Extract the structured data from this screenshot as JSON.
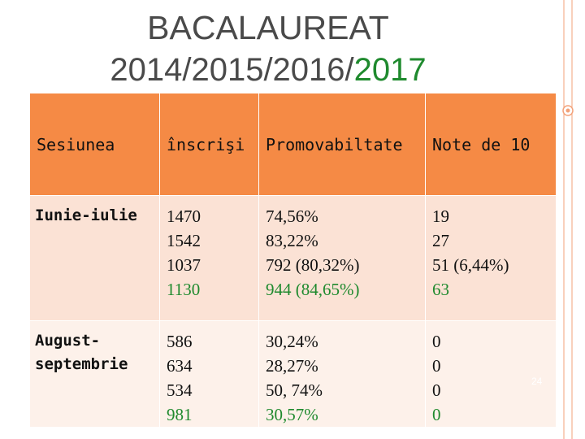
{
  "title_line1": "BACALAUREAT",
  "title_line2_prefix": "2014/2015/2016/",
  "title_line2_highlight": "2017",
  "table": {
    "headers": [
      "Sesiunea",
      "înscrişi",
      "Promovabiltate",
      "Note de 10"
    ],
    "rows": [
      {
        "session": "Iunie-iulie",
        "inscrisi": [
          "1470",
          "1542",
          "1037",
          "1130"
        ],
        "promovabilitate": [
          "74,56%",
          "83,22%",
          "792 (80,32%)",
          "944 (84,65%)"
        ],
        "note10": [
          "19",
          "27",
          "51 (6,44%)",
          "63"
        ]
      },
      {
        "session": "August-septembrie",
        "inscrisi": [
          "586",
          "634",
          "534",
          "981"
        ],
        "promovabilitate": [
          "30,24%",
          "28,27%",
          "50, 74%",
          "30,57%"
        ],
        "note10": [
          "0",
          "0",
          "0",
          "0"
        ]
      }
    ]
  },
  "slide_number": "24",
  "colors": {
    "header_bg": "#f58a45",
    "row1_bg": "#fbe2d5",
    "row2_bg": "#fdf1ea",
    "highlight_green": "#1f8a2e",
    "title_gray": "#4a4a4a"
  }
}
